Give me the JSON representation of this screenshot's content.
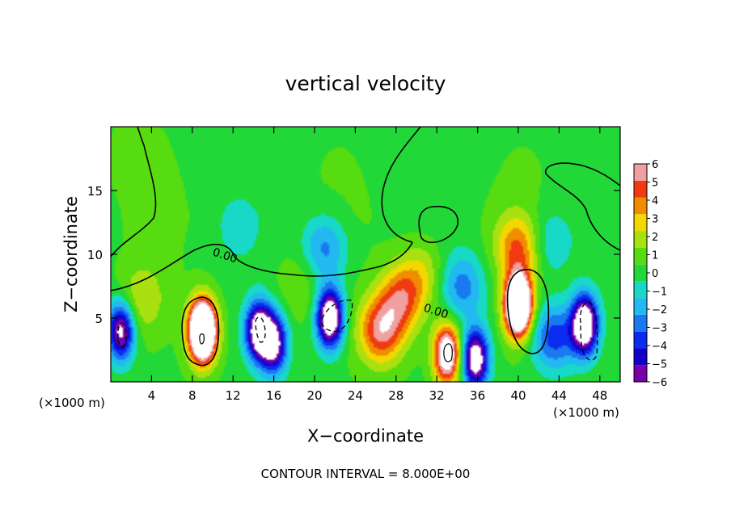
{
  "chart_data": {
    "type": "heatmap",
    "title": "vertical velocity",
    "xlabel": "X−coordinate",
    "ylabel": "Z−coordinate",
    "x_unit_label": "(×1000 m)",
    "z_unit_label": "(×1000 m)",
    "footer": "CONTOUR INTERVAL = 8.000E+00",
    "xlim": [
      0,
      50
    ],
    "ylim": [
      0,
      20
    ],
    "x_ticks": [
      4,
      8,
      12,
      16,
      20,
      24,
      28,
      32,
      36,
      40,
      44,
      48
    ],
    "y_ticks": [
      5,
      10,
      15
    ],
    "contour_labels": [
      "0.00",
      "0.00"
    ],
    "colorbar": {
      "levels": [
        -6,
        -5,
        -4,
        -3,
        -2,
        -1,
        0,
        1,
        2,
        3,
        4,
        5,
        6
      ],
      "labels": [
        "6",
        "5",
        "4",
        "3",
        "2",
        "1",
        "0",
        "−1",
        "−2",
        "−3",
        "−4",
        "−5",
        "−6"
      ],
      "colors": [
        "#7a00a8",
        "#1400c8",
        "#0a2cf0",
        "#1a78f0",
        "#22b8f0",
        "#18d8c8",
        "#22d838",
        "#56dc10",
        "#a8e010",
        "#f0d800",
        "#f08c00",
        "#f03a10",
        "#f0a0a0"
      ]
    },
    "cells": [
      {
        "x": 1.0,
        "z": 4.0,
        "w": -7
      },
      {
        "x": 3.0,
        "z": 6.5,
        "w": 2
      },
      {
        "x": 9.0,
        "z": 4.0,
        "w": 14
      },
      {
        "x": 14.5,
        "z": 4.0,
        "w": -8
      },
      {
        "x": 16.0,
        "z": 3.0,
        "w": -7
      },
      {
        "x": 21.5,
        "z": 5.0,
        "w": -9
      },
      {
        "x": 18.5,
        "z": 7.5,
        "w": 1
      },
      {
        "x": 21.0,
        "z": 10.5,
        "w": -3
      },
      {
        "x": 26.5,
        "z": 4.0,
        "w": 5
      },
      {
        "x": 28.5,
        "z": 6.5,
        "w": 4
      },
      {
        "x": 30.5,
        "z": 8.5,
        "w": 2
      },
      {
        "x": 33.0,
        "z": 2.2,
        "w": 8
      },
      {
        "x": 35.8,
        "z": 1.8,
        "w": -8
      },
      {
        "x": 34.5,
        "z": 7.5,
        "w": -3
      },
      {
        "x": 40.0,
        "z": 6.0,
        "w": 13
      },
      {
        "x": 40.0,
        "z": 10.5,
        "w": 4
      },
      {
        "x": 46.5,
        "z": 4.5,
        "w": -9
      },
      {
        "x": 43.5,
        "z": 3.5,
        "w": -4
      },
      {
        "x": 43.0,
        "z": 11.0,
        "w": -2
      },
      {
        "x": 12.5,
        "z": 12.0,
        "w": -1
      },
      {
        "x": 2.0,
        "z": 17.5,
        "w": 0.6
      }
    ]
  }
}
